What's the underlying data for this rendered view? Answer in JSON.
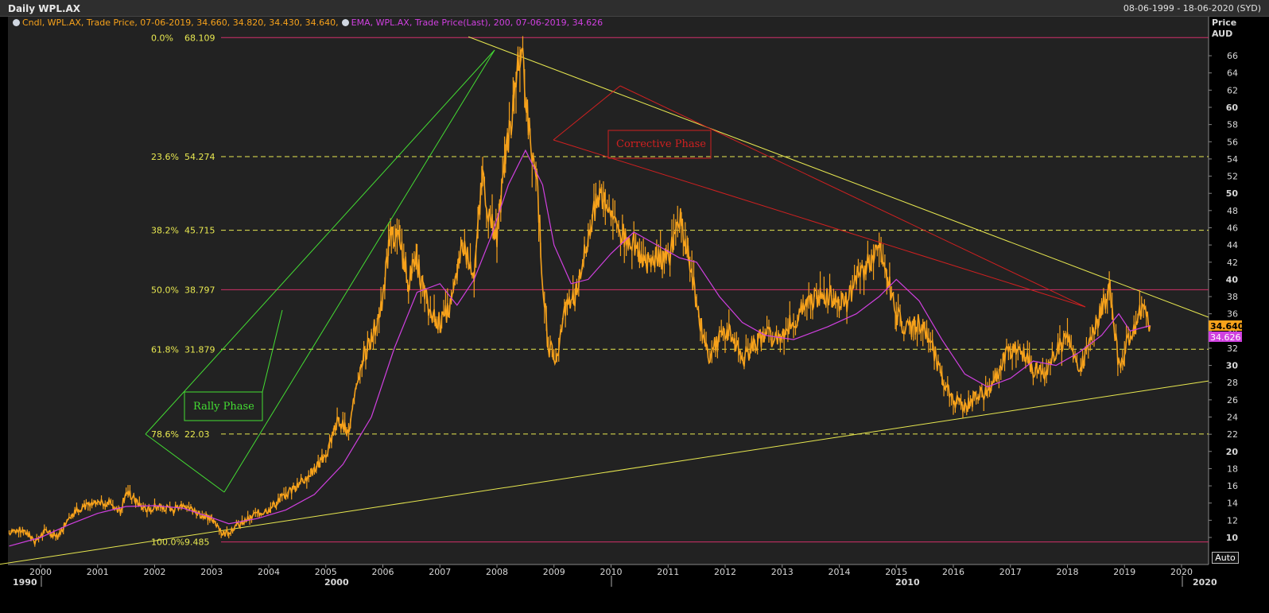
{
  "header": {
    "title": "Daily WPL.AX",
    "date_range": "08-06-1999 - 18-06-2020 (SYD)"
  },
  "legend": {
    "candle": "Cndl, WPL.AX, Trade Price, 07-06-2019, 34.660, 34.820, 34.430, 34.640,",
    "ema": "EMA, WPL.AX, Trade Price(Last), 200, 07-06-2019, 34.626"
  },
  "axis": {
    "price_title": "Price",
    "currency": "AUD",
    "last_price": "34.640",
    "last_ema": "34.626",
    "auto_button": "Auto"
  },
  "annotations": {
    "rally": "Rally Phase",
    "corrective": "Corrective Phase"
  },
  "colors": {
    "background": "#222222",
    "candles": "#f7a21b",
    "ema": "#d040e0",
    "fib_dashed": "#e8e850",
    "fib_solid": "#d0306a",
    "trendline": "#e8e850",
    "rally": "#44dd33",
    "corrective": "#d02020"
  },
  "chart_data": {
    "type": "line",
    "title": "Daily WPL.AX",
    "ylabel": "Price AUD",
    "ylim": [
      9,
      70
    ],
    "xlim": [
      1999.45,
      2020.9
    ],
    "y_ticks": [
      10,
      12,
      14,
      16,
      18,
      20,
      22,
      24,
      26,
      28,
      30,
      32,
      34,
      36,
      38,
      40,
      42,
      44,
      46,
      48,
      50,
      52,
      54,
      56,
      58,
      60,
      62,
      64,
      66
    ],
    "x_ticks": [
      "2000",
      "2001",
      "2002",
      "2003",
      "2004",
      "2005",
      "2006",
      "2007",
      "2008",
      "2009",
      "2010",
      "2011",
      "2012",
      "2013",
      "2014",
      "2015",
      "2016",
      "2017",
      "2018",
      "2019",
      "2020"
    ],
    "decades": [
      "1990",
      "2000",
      "2010",
      "2020"
    ],
    "fib_levels": [
      {
        "pct": "0.0%",
        "value": 68.109,
        "label": "68.109",
        "style": "solid"
      },
      {
        "pct": "23.6%",
        "value": 54.274,
        "label": "54.274",
        "style": "dashed"
      },
      {
        "pct": "38.2%",
        "value": 45.715,
        "label": "45.715",
        "style": "dashed"
      },
      {
        "pct": "50.0%",
        "value": 38.797,
        "label": "38.797",
        "style": "solid"
      },
      {
        "pct": "61.8%",
        "value": 31.879,
        "label": "31.879",
        "style": "dashed"
      },
      {
        "pct": "78.6%",
        "value": 22.03,
        "label": "22.03",
        "style": "dashed"
      },
      {
        "pct": "100.0%",
        "value": 9.485,
        "label": "9.485",
        "style": "solid"
      }
    ],
    "series": [
      {
        "name": "Cndl, WPL.AX, Trade Price",
        "x": [
          1999.45,
          1999.7,
          1999.9,
          2000.1,
          2000.3,
          2000.5,
          2000.7,
          2001.0,
          2001.2,
          2001.4,
          2001.5,
          2001.7,
          2001.9,
          2002.1,
          2002.3,
          2002.5,
          2002.7,
          2002.9,
          2003.1,
          2003.2,
          2003.4,
          2003.6,
          2003.8,
          2004.0,
          2004.2,
          2004.5,
          2004.8,
          2005.0,
          2005.2,
          2005.4,
          2005.6,
          2005.8,
          2006.0,
          2006.15,
          2006.3,
          2006.45,
          2006.6,
          2006.8,
          2007.0,
          2007.2,
          2007.4,
          2007.6,
          2007.75,
          2007.85,
          2008.0,
          2008.15,
          2008.3,
          2008.42,
          2008.55,
          2008.7,
          2008.8,
          2008.9,
          2009.05,
          2009.2,
          2009.4,
          2009.6,
          2009.8,
          2010.0,
          2010.2,
          2010.4,
          2010.6,
          2010.8,
          2011.0,
          2011.2,
          2011.35,
          2011.5,
          2011.7,
          2011.9,
          2012.1,
          2012.3,
          2012.5,
          2012.7,
          2012.9,
          2013.1,
          2013.3,
          2013.5,
          2013.7,
          2013.9,
          2014.1,
          2014.3,
          2014.5,
          2014.7,
          2014.85,
          2015.0,
          2015.2,
          2015.4,
          2015.6,
          2015.8,
          2016.0,
          2016.2,
          2016.4,
          2016.6,
          2016.8,
          2017.0,
          2017.2,
          2017.4,
          2017.6,
          2017.8,
          2018.0,
          2018.2,
          2018.4,
          2018.6,
          2018.75,
          2018.9,
          2019.0,
          2019.2,
          2019.35,
          2019.45
        ],
        "values": [
          10.5,
          11.0,
          9.5,
          10.8,
          10.0,
          12.5,
          13.5,
          13.8,
          14.2,
          13.0,
          15.5,
          14.0,
          13.2,
          13.8,
          13.0,
          14.0,
          13.0,
          12.5,
          11.5,
          10.3,
          11.2,
          12.0,
          12.8,
          13.2,
          14.5,
          16.0,
          18.0,
          19.5,
          23.5,
          22.5,
          30.0,
          33.0,
          38.0,
          46.0,
          44.0,
          40.0,
          42.0,
          36.5,
          35.0,
          37.0,
          44.0,
          41.0,
          52.0,
          48.0,
          45.0,
          55.0,
          60.0,
          67.5,
          58.0,
          52.0,
          40.0,
          32.0,
          31.0,
          37.0,
          38.5,
          45.0,
          50.0,
          48.0,
          45.0,
          44.0,
          42.0,
          43.0,
          42.0,
          47.5,
          43.5,
          37.0,
          31.0,
          33.0,
          34.0,
          30.5,
          32.5,
          33.5,
          33.0,
          34.5,
          36.0,
          37.5,
          38.5,
          38.0,
          37.0,
          40.0,
          42.0,
          43.5,
          40.0,
          36.0,
          34.0,
          35.0,
          33.0,
          28.5,
          26.0,
          25.0,
          26.5,
          27.0,
          29.5,
          32.0,
          31.5,
          29.5,
          29.0,
          31.5,
          33.5,
          29.0,
          33.0,
          36.5,
          39.0,
          30.0,
          31.5,
          35.0,
          37.0,
          34.64
        ]
      },
      {
        "name": "EMA, WPL.AX, Trade Price(Last), 200",
        "x": [
          1999.45,
          2000.0,
          2000.5,
          2001.0,
          2001.5,
          2002.0,
          2002.5,
          2003.0,
          2003.3,
          2003.8,
          2004.3,
          2004.8,
          2005.3,
          2005.8,
          2006.2,
          2006.6,
          2007.0,
          2007.3,
          2007.6,
          2007.9,
          2008.2,
          2008.5,
          2008.8,
          2009.0,
          2009.3,
          2009.6,
          2010.0,
          2010.4,
          2010.8,
          2011.2,
          2011.5,
          2011.9,
          2012.3,
          2012.7,
          2013.2,
          2013.8,
          2014.3,
          2014.7,
          2015.0,
          2015.4,
          2015.8,
          2016.2,
          2016.6,
          2017.0,
          2017.4,
          2017.8,
          2018.2,
          2018.6,
          2018.9,
          2019.1,
          2019.45
        ],
        "values": [
          9.0,
          10.0,
          11.5,
          12.8,
          13.6,
          13.7,
          13.4,
          12.3,
          11.6,
          12.2,
          13.2,
          15.0,
          18.5,
          24.0,
          32.0,
          38.5,
          39.5,
          37.0,
          40.0,
          45.0,
          51.0,
          55.0,
          51.0,
          44.0,
          39.5,
          40.0,
          43.0,
          45.5,
          44.0,
          42.5,
          42.0,
          38.0,
          35.0,
          33.5,
          33.0,
          34.5,
          36.0,
          38.0,
          40.0,
          37.5,
          33.0,
          29.0,
          27.5,
          28.5,
          30.5,
          30.0,
          31.5,
          33.5,
          36.0,
          34.0,
          34.626
        ]
      }
    ]
  }
}
